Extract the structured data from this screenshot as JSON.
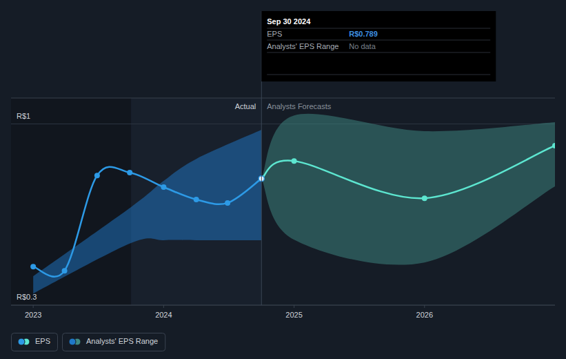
{
  "chart_data": {
    "type": "line",
    "xlim": [
      2022.83,
      2027.0
    ],
    "xticks": [
      2023,
      2024,
      2025,
      2026
    ],
    "ylim": [
      0.3,
      1.1
    ],
    "yticks": [
      {
        "value": 0.3,
        "label": "R$0.3"
      },
      {
        "value": 1,
        "label": "R$1"
      }
    ],
    "grid": true,
    "legend": "bottom-left",
    "annotations": [
      "Actual",
      "Analysts Forecasts"
    ],
    "tooltip": {
      "title": "Sep 30 2024",
      "rows": [
        {
          "label": "EPS",
          "value": "R$0.789"
        },
        {
          "label": "Analysts' EPS Range",
          "value": "No data"
        }
      ]
    },
    "series": [
      {
        "name": "EPS",
        "type": "line",
        "color": "#2d9ae6",
        "marker": "circle",
        "x": [
          2023.0,
          2023.24,
          2023.49,
          2023.74,
          2024.0,
          2024.25,
          2024.49,
          2024.75
        ],
        "values": [
          0.449,
          0.433,
          0.801,
          0.812,
          0.756,
          0.708,
          0.695,
          0.789
        ]
      },
      {
        "name": "EPS",
        "type": "line",
        "color": "#5de6d0",
        "marker": "circle",
        "x": [
          2024.75,
          2025.0,
          2026.0,
          2027.0
        ],
        "values": [
          0.789,
          0.857,
          0.713,
          0.916
        ]
      },
      {
        "name": "Analysts' EPS Range",
        "type": "range",
        "color": "#1f78c8",
        "x": [
          2023.0,
          2023.75,
          2024.0,
          2024.25,
          2024.75
        ],
        "low": [
          0.345,
          0.54,
          0.551,
          0.551,
          0.551
        ],
        "high": [
          0.412,
          0.679,
          0.78,
          0.865,
          0.977
        ]
      },
      {
        "name": "Analysts' EPS Range",
        "type": "range",
        "color": "#3f8a84",
        "x": [
          2024.75,
          2025.0,
          2026.0,
          2027.0
        ],
        "low": [
          0.789,
          0.553,
          0.465,
          0.759
        ],
        "high": [
          0.789,
          1.033,
          0.972,
          1.007
        ]
      }
    ]
  }
}
